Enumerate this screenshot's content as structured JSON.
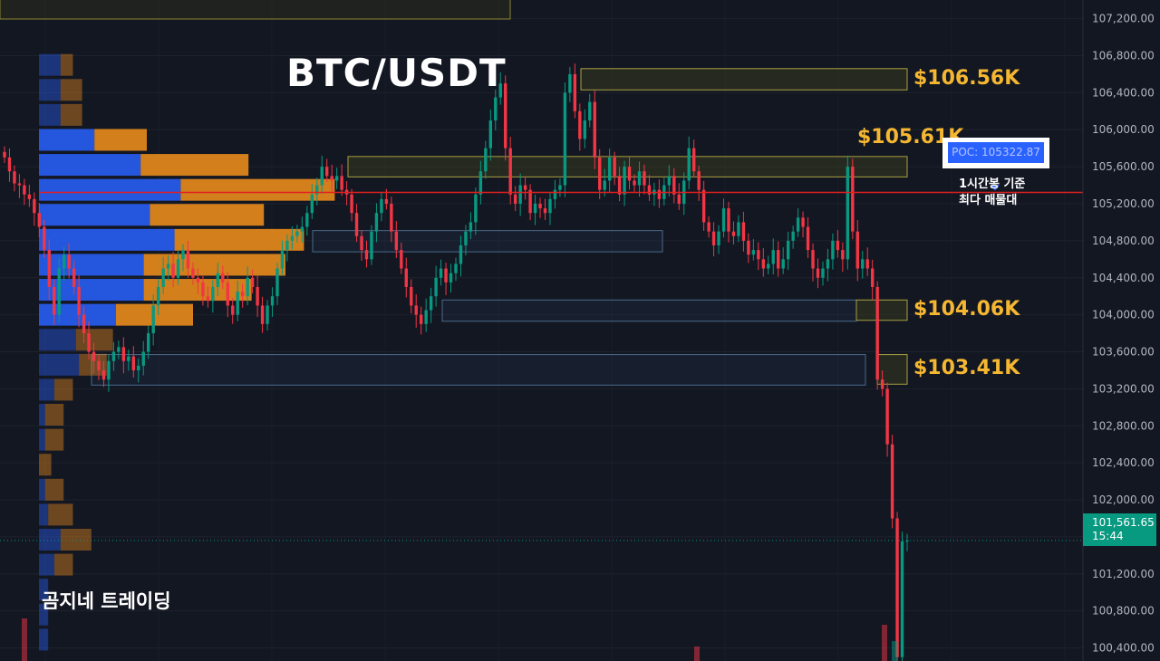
{
  "chart_data": {
    "type": "candlestick",
    "title": "BTC/USDT",
    "watermark": "곰지네 트레이딩",
    "y_axis": {
      "range": [
        100200,
        107300
      ],
      "tick_labels": [
        "107,200.00",
        "106,800.00",
        "106,400.00",
        "106,000.00",
        "105,600.00",
        "105,200.00",
        "104,800.00",
        "104,400.00",
        "104,000.00",
        "103,600.00",
        "103,200.00",
        "102,800.00",
        "102,400.00",
        "102,000.00",
        "101,600.00",
        "101,200.00",
        "100,800.00",
        "100,400.00"
      ],
      "ticks": [
        107200,
        106800,
        106400,
        106000,
        105600,
        105200,
        104800,
        104400,
        104000,
        103600,
        103200,
        102800,
        102400,
        102000,
        101600,
        101200,
        100800,
        100400
      ]
    },
    "colors": {
      "up": "#089981",
      "down": "#f23645",
      "poc_line": "#e02020",
      "level_label": "#f5b731",
      "profile_up": "#2962ff",
      "profile_down": "#f5921b"
    },
    "levels": [
      {
        "label": "$106.56K",
        "low": 106430,
        "high": 106660
      },
      {
        "label": "$105.61K",
        "low": 105490,
        "high": 105710
      },
      {
        "label": "$104.06K",
        "low": 103940,
        "high": 104160
      },
      {
        "label": "$103.41K",
        "low": 103250,
        "high": 103570
      }
    ],
    "value_areas": [
      {
        "low": 104680,
        "high": 104910
      },
      {
        "low": 103930,
        "high": 104160
      },
      {
        "low": 103240,
        "high": 103570
      }
    ],
    "poc": {
      "label": "POC: 105322.87",
      "value": 105322.87,
      "note": [
        "1시간봉 기준",
        "최다 매물대"
      ]
    },
    "last_price": {
      "value": 101561.65,
      "label": "101,561.65",
      "countdown": "15:44"
    },
    "volume_profile": [
      {
        "price": 106700,
        "up": 0.07,
        "down": 0.04
      },
      {
        "price": 106430,
        "up": 0.07,
        "down": 0.07
      },
      {
        "price": 106160,
        "up": 0.07,
        "down": 0.07
      },
      {
        "price": 105890,
        "up": 0.18,
        "down": 0.17
      },
      {
        "price": 105620,
        "up": 0.33,
        "down": 0.35
      },
      {
        "price": 105350,
        "up": 0.46,
        "down": 0.5
      },
      {
        "price": 105080,
        "up": 0.36,
        "down": 0.37
      },
      {
        "price": 104810,
        "up": 0.44,
        "down": 0.42
      },
      {
        "price": 104540,
        "up": 0.34,
        "down": 0.46
      },
      {
        "price": 104270,
        "up": 0.34,
        "down": 0.35
      },
      {
        "price": 104000,
        "up": 0.25,
        "down": 0.25
      },
      {
        "price": 103730,
        "up": 0.12,
        "down": 0.12
      },
      {
        "price": 103460,
        "up": 0.13,
        "down": 0.09
      },
      {
        "price": 103190,
        "up": 0.05,
        "down": 0.06
      },
      {
        "price": 102920,
        "up": 0.02,
        "down": 0.06
      },
      {
        "price": 102650,
        "up": 0.02,
        "down": 0.06
      },
      {
        "price": 102380,
        "up": 0.0,
        "down": 0.04
      },
      {
        "price": 102110,
        "up": 0.02,
        "down": 0.06
      },
      {
        "price": 101840,
        "up": 0.03,
        "down": 0.08
      },
      {
        "price": 101570,
        "up": 0.07,
        "down": 0.1
      },
      {
        "price": 101300,
        "up": 0.05,
        "down": 0.06
      },
      {
        "price": 101030,
        "up": 0.03,
        "down": 0.0
      },
      {
        "price": 100760,
        "up": 0.03,
        "down": 0.0
      },
      {
        "price": 100490,
        "up": 0.03,
        "down": 0.0
      }
    ],
    "closes": [
      105700,
      105550,
      105420,
      105400,
      105300,
      105250,
      105100,
      104950,
      104700,
      104300,
      104000,
      104500,
      104650,
      104500,
      104300,
      104000,
      103800,
      103600,
      103500,
      103400,
      103300,
      103500,
      103600,
      103650,
      103500,
      103550,
      103400,
      103450,
      103600,
      103800,
      104100,
      104300,
      104500,
      104550,
      104400,
      104600,
      104700,
      104500,
      104400,
      104350,
      104200,
      104150,
      104300,
      104450,
      104350,
      104100,
      104000,
      104250,
      104200,
      104400,
      104300,
      104100,
      103900,
      104100,
      104200,
      104500,
      104700,
      104800,
      104850,
      104900,
      104950,
      105100,
      105300,
      105400,
      105600,
      105500,
      105450,
      105500,
      105350,
      105300,
      105100,
      104850,
      104700,
      104600,
      104900,
      105100,
      105250,
      105200,
      104900,
      104700,
      104500,
      104300,
      104100,
      104000,
      103900,
      104050,
      104200,
      104400,
      104500,
      104350,
      104450,
      104550,
      104750,
      104900,
      105000,
      105300,
      105550,
      105800,
      106100,
      106350,
      106500,
      105800,
      105300,
      105200,
      105400,
      105350,
      105100,
      105200,
      105150,
      105100,
      105250,
      105350,
      105400,
      106400,
      106600,
      106200,
      105900,
      106100,
      106300,
      105700,
      105350,
      105450,
      105700,
      105500,
      105300,
      105600,
      105450,
      105400,
      105550,
      105400,
      105300,
      105350,
      105250,
      105400,
      105500,
      105300,
      105200,
      105450,
      105800,
      105550,
      105350,
      105000,
      104900,
      104750,
      104900,
      105150,
      104900,
      104850,
      105000,
      104800,
      104650,
      104700,
      104600,
      104500,
      104550,
      104700,
      104500,
      104600,
      104800,
      104900,
      105050,
      104950,
      104700,
      104500,
      104400,
      104500,
      104600,
      104800,
      104700,
      104600,
      105600,
      104900,
      104500,
      104600,
      104500,
      104300,
      103300,
      103200,
      102600,
      101800,
      100300,
      101550,
      101560
    ]
  }
}
